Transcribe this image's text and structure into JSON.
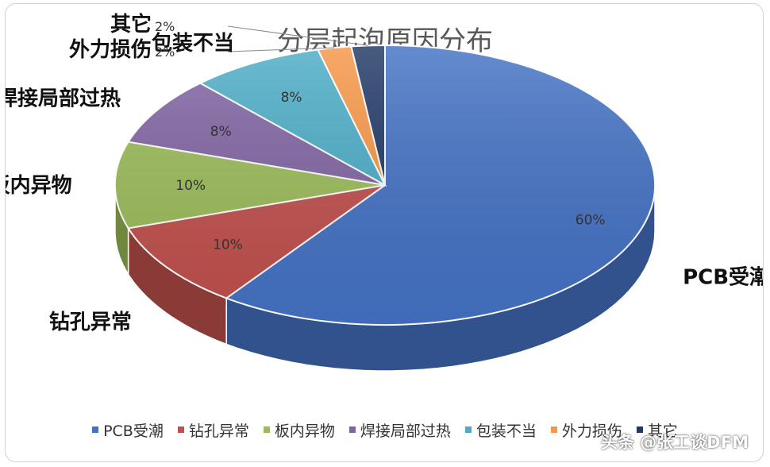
{
  "chart_data": {
    "type": "pie",
    "title": "分层起泡原因分布",
    "slices": [
      {
        "label": "PCB受潮",
        "value": 60,
        "value_label": "60%",
        "color": "#4472C4"
      },
      {
        "label": "钻孔异常",
        "value": 10,
        "value_label": "10%",
        "color": "#C0504D"
      },
      {
        "label": "板内异物",
        "value": 10,
        "value_label": "10%",
        "color": "#9BBB59"
      },
      {
        "label": "焊接局部过热",
        "value": 8,
        "value_label": "8%",
        "color": "#8064A2"
      },
      {
        "label": "包装不当",
        "value": 8,
        "value_label": "8%",
        "color": "#4BACC6"
      },
      {
        "label": "外力损伤",
        "value": 2,
        "value_label": "2%",
        "color": "#F79646"
      },
      {
        "label": "其它",
        "value": 2,
        "value_label": "2%",
        "color": "#1F3864"
      }
    ],
    "legend_position": "bottom",
    "style": "3d"
  },
  "watermark": {
    "text": "头条 @张工谈DFM"
  }
}
